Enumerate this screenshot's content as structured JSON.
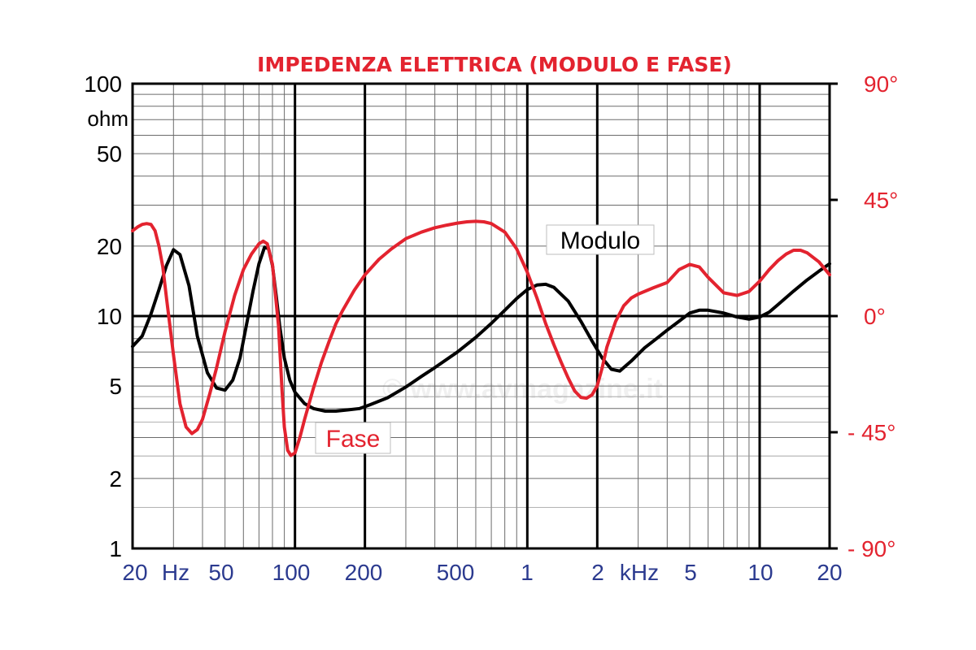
{
  "chart_data": {
    "type": "line",
    "title": "IMPEDENZA ELETTRICA (MODULO E FASE)",
    "x_axis": {
      "scale": "log",
      "range": [
        20,
        20000
      ],
      "tick_labels": [
        "20",
        "Hz",
        "50",
        "100",
        "200",
        "500",
        "1",
        "2",
        "kHz",
        "5",
        "10",
        "20"
      ]
    },
    "y_axis_left": {
      "scale": "log",
      "unit": "ohm",
      "range": [
        1,
        100
      ],
      "tick_labels": [
        "100",
        "50",
        "20",
        "10",
        "5",
        "2",
        "1"
      ]
    },
    "y_axis_right": {
      "unit": "degrees",
      "range": [
        -90,
        90
      ],
      "tick_labels": [
        "90°",
        "45°",
        "0°",
        "- 45°",
        "- 90°"
      ]
    },
    "grid": true,
    "colors": {
      "modulo": "#000000",
      "fase": "#e3232f",
      "axis_labels": "#2b3a8f",
      "right_axis": "#e3232f"
    },
    "series": [
      {
        "name": "Modulo",
        "axis": "left",
        "x": [
          20,
          22,
          24,
          26,
          28,
          30,
          32,
          35,
          38,
          42,
          46,
          50,
          54,
          58,
          62,
          66,
          70,
          74,
          77,
          80,
          83,
          86,
          90,
          95,
          100,
          110,
          120,
          135,
          150,
          170,
          190,
          210,
          250,
          300,
          350,
          400,
          500,
          600,
          700,
          800,
          900,
          1000,
          1100,
          1200,
          1300,
          1500,
          1700,
          1900,
          2100,
          2300,
          2500,
          2800,
          3200,
          3600,
          4000,
          4500,
          5000,
          5500,
          6000,
          7000,
          8000,
          9000,
          10000,
          11000,
          12000,
          14000,
          16000,
          18000,
          20000
        ],
        "y": [
          7.4,
          8.2,
          10.2,
          13.0,
          16.5,
          19.3,
          18.4,
          13.5,
          8.2,
          5.7,
          4.9,
          4.8,
          5.3,
          6.6,
          9.3,
          12.8,
          16.8,
          19.8,
          19.5,
          16.5,
          12.2,
          9.0,
          6.6,
          5.3,
          4.7,
          4.2,
          4.0,
          3.9,
          3.9,
          3.95,
          4.0,
          4.15,
          4.45,
          4.95,
          5.5,
          6.0,
          7.0,
          8.1,
          9.3,
          10.6,
          11.9,
          13.0,
          13.6,
          13.7,
          13.3,
          11.6,
          9.5,
          7.8,
          6.6,
          5.9,
          5.8,
          6.4,
          7.3,
          8.0,
          8.7,
          9.5,
          10.3,
          10.6,
          10.6,
          10.3,
          9.9,
          9.7,
          9.9,
          10.4,
          11.2,
          12.8,
          14.3,
          15.6,
          16.8
        ]
      },
      {
        "name": "Fase",
        "axis": "right",
        "x": [
          20,
          21,
          22,
          23,
          24,
          25,
          26,
          27,
          28,
          30,
          32,
          34,
          36,
          38,
          40,
          43,
          46,
          50,
          55,
          60,
          65,
          70,
          73,
          76,
          80,
          85,
          88,
          90,
          93,
          96,
          100,
          105,
          110,
          120,
          130,
          140,
          150,
          160,
          180,
          200,
          230,
          260,
          300,
          350,
          400,
          450,
          500,
          550,
          600,
          650,
          700,
          800,
          900,
          1000,
          1100,
          1200,
          1300,
          1400,
          1500,
          1600,
          1700,
          1800,
          1900,
          2000,
          2100,
          2200,
          2400,
          2600,
          2800,
          3000,
          3500,
          4000,
          4500,
          5000,
          5500,
          6000,
          7000,
          8000,
          9000,
          10000,
          11000,
          12000,
          13000,
          14000,
          15000,
          16000,
          18000,
          20000
        ],
        "y": [
          33,
          34.5,
          35.5,
          35.8,
          35.5,
          33,
          27,
          19,
          7,
          -15,
          -34,
          -43,
          -45.5,
          -44,
          -40,
          -30,
          -20,
          -6,
          8,
          18,
          24,
          28,
          29,
          28,
          20,
          -4,
          -29,
          -43,
          -52,
          -54,
          -53,
          -47,
          -40,
          -28,
          -18,
          -10,
          -3,
          2,
          10,
          16,
          22,
          26,
          30,
          32.5,
          34.2,
          35.2,
          36,
          36.5,
          36.7,
          36.5,
          35.8,
          32.5,
          26,
          17,
          7,
          -3,
          -11,
          -18,
          -24,
          -29,
          -31.5,
          -31.8,
          -30.5,
          -27,
          -20,
          -12,
          -2,
          4,
          7,
          8.5,
          11,
          13,
          18,
          20,
          19,
          15,
          9,
          8,
          9.5,
          13.5,
          18,
          21.5,
          24,
          25.5,
          25.5,
          24.5,
          21,
          16
        ]
      }
    ],
    "annotations": [
      {
        "text": "Modulo",
        "series": "Modulo"
      },
      {
        "text": "Fase",
        "series": "Fase"
      }
    ]
  },
  "watermark": "© www.avmagazine.it"
}
